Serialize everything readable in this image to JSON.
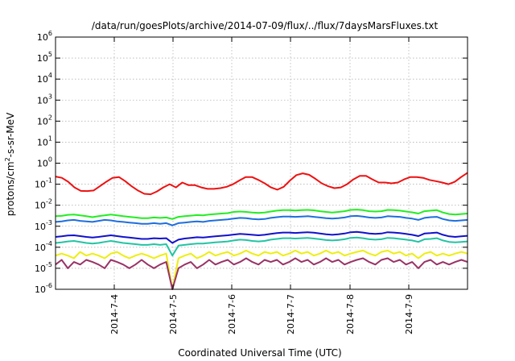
{
  "chart_data": {
    "type": "line",
    "title": "/data/run/goesPlots/archive/2014-07-09/flux/../flux/7daysMarsFluxes.txt",
    "xlabel": "Coordinated Universal Time (UTC)",
    "ylabel": {
      "prefix": "protons/cm",
      "sup": "2",
      "suffix": "-s-sr-MeV"
    },
    "y_scale": "log",
    "ylim_exp": [
      -6,
      6
    ],
    "y_ticks": [
      {
        "base": "10",
        "exp": "-6"
      },
      {
        "base": "10",
        "exp": "-5"
      },
      {
        "base": "10",
        "exp": "-4"
      },
      {
        "base": "10",
        "exp": "-3"
      },
      {
        "base": "10",
        "exp": "-2"
      },
      {
        "base": "10",
        "exp": "-1"
      },
      {
        "base": "10",
        "exp": "0"
      },
      {
        "base": "10",
        "exp": "1"
      },
      {
        "base": "10",
        "exp": "2"
      },
      {
        "base": "10",
        "exp": "3"
      },
      {
        "base": "10",
        "exp": "4"
      },
      {
        "base": "10",
        "exp": "5"
      },
      {
        "base": "10",
        "exp": "6"
      }
    ],
    "x_range_days": [
      "2014-07-03 04:00",
      "2014-07-09 22:00"
    ],
    "x_ticks": [
      "2014-7-4",
      "2014-7-5",
      "2014-7-6",
      "2014-7-7",
      "2014-7-8",
      "2014-7-9"
    ],
    "grid": true,
    "legend": "none",
    "series": [
      {
        "color": "#ee1111",
        "values": [
          0.23,
          0.2,
          0.13,
          0.07,
          0.048,
          0.047,
          0.05,
          0.08,
          0.13,
          0.2,
          0.22,
          0.14,
          0.08,
          0.05,
          0.035,
          0.033,
          0.045,
          0.07,
          0.1,
          0.07,
          0.12,
          0.09,
          0.09,
          0.07,
          0.06,
          0.06,
          0.065,
          0.075,
          0.1,
          0.15,
          0.22,
          0.22,
          0.16,
          0.11,
          0.07,
          0.055,
          0.075,
          0.15,
          0.27,
          0.33,
          0.28,
          0.18,
          0.11,
          0.08,
          0.065,
          0.07,
          0.1,
          0.17,
          0.25,
          0.25,
          0.17,
          0.12,
          0.12,
          0.11,
          0.12,
          0.17,
          0.22,
          0.22,
          0.2,
          0.16,
          0.14,
          0.12,
          0.1,
          0.13,
          0.22,
          0.35
        ]
      },
      {
        "color": "#22ee22",
        "values": [
          0.003,
          0.0031,
          0.0035,
          0.0036,
          0.0033,
          0.003,
          0.0027,
          0.003,
          0.0033,
          0.0036,
          0.0033,
          0.003,
          0.0028,
          0.0026,
          0.0024,
          0.0024,
          0.0026,
          0.0025,
          0.0026,
          0.0022,
          0.0028,
          0.003,
          0.0032,
          0.0034,
          0.0033,
          0.0036,
          0.0038,
          0.004,
          0.0042,
          0.0048,
          0.005,
          0.0048,
          0.0045,
          0.0043,
          0.0045,
          0.005,
          0.0055,
          0.0058,
          0.0058,
          0.0056,
          0.0058,
          0.006,
          0.0057,
          0.0052,
          0.0048,
          0.0045,
          0.0048,
          0.0052,
          0.006,
          0.0062,
          0.0058,
          0.0052,
          0.005,
          0.0052,
          0.006,
          0.0058,
          0.0055,
          0.005,
          0.0046,
          0.004,
          0.0052,
          0.0055,
          0.0058,
          0.0045,
          0.0038,
          0.0036,
          0.0038,
          0.004
        ]
      },
      {
        "color": "#1e6fdd",
        "values": [
          0.0016,
          0.0017,
          0.0019,
          0.002,
          0.0018,
          0.0017,
          0.0016,
          0.0018,
          0.002,
          0.0019,
          0.0017,
          0.0016,
          0.0015,
          0.0014,
          0.0013,
          0.0013,
          0.0014,
          0.0013,
          0.0014,
          0.0011,
          0.0014,
          0.0015,
          0.0016,
          0.0017,
          0.0016,
          0.0018,
          0.0019,
          0.002,
          0.0021,
          0.0023,
          0.0025,
          0.0024,
          0.0022,
          0.0021,
          0.0022,
          0.0025,
          0.0027,
          0.0029,
          0.0029,
          0.0028,
          0.0029,
          0.003,
          0.0028,
          0.0026,
          0.0024,
          0.0023,
          0.0024,
          0.0026,
          0.003,
          0.0031,
          0.0029,
          0.0026,
          0.0025,
          0.0026,
          0.003,
          0.0029,
          0.0028,
          0.0025,
          0.0023,
          0.002,
          0.0025,
          0.0027,
          0.0028,
          0.0022,
          0.0019,
          0.0018,
          0.0019,
          0.002
        ]
      },
      {
        "color": "#1111cc",
        "values": [
          0.00031,
          0.00033,
          0.00036,
          0.00037,
          0.00034,
          0.00031,
          0.00029,
          0.00031,
          0.00034,
          0.00037,
          0.00034,
          0.00031,
          0.00029,
          0.00027,
          0.00025,
          0.00025,
          0.00027,
          0.00026,
          0.00027,
          0.00016,
          0.00023,
          0.00026,
          0.00028,
          0.0003,
          0.00029,
          0.00031,
          0.00033,
          0.00035,
          0.00037,
          0.0004,
          0.00043,
          0.00041,
          0.00039,
          0.00037,
          0.00039,
          0.00043,
          0.00047,
          0.0005,
          0.0005,
          0.00048,
          0.0005,
          0.00052,
          0.00049,
          0.00045,
          0.00041,
          0.00039,
          0.00041,
          0.00045,
          0.00052,
          0.00054,
          0.0005,
          0.00045,
          0.00043,
          0.00045,
          0.00052,
          0.0005,
          0.00047,
          0.00043,
          0.00039,
          0.00034,
          0.00045,
          0.00047,
          0.0005,
          0.00039,
          0.00033,
          0.00031,
          0.00033,
          0.00035
        ]
      },
      {
        "color": "#22c4a4",
        "values": [
          0.00016,
          0.00017,
          0.00019,
          0.0002,
          0.00018,
          0.00016,
          0.00015,
          0.00016,
          0.00018,
          0.0002,
          0.00018,
          0.00016,
          0.00015,
          0.00014,
          0.00013,
          0.00013,
          0.00014,
          0.00013,
          0.00014,
          4e-05,
          0.00012,
          0.00013,
          0.00014,
          0.00015,
          0.00015,
          0.00016,
          0.00017,
          0.00018,
          0.00019,
          0.00021,
          0.00023,
          0.00022,
          0.0002,
          0.00019,
          0.0002,
          0.00023,
          0.00025,
          0.00027,
          0.00027,
          0.00026,
          0.00027,
          0.00028,
          0.00026,
          0.00024,
          0.00022,
          0.00021,
          0.00022,
          0.00024,
          0.00028,
          0.00029,
          0.00027,
          0.00024,
          0.00023,
          0.00024,
          0.00028,
          0.00027,
          0.00025,
          0.00023,
          0.00021,
          0.00018,
          0.00024,
          0.00025,
          0.00027,
          0.00021,
          0.00018,
          0.00017,
          0.00018,
          0.00019
        ]
      },
      {
        "color": "#eeee11",
        "values": [
          4e-05,
          5e-05,
          4e-05,
          3e-05,
          6e-05,
          4e-05,
          5e-05,
          4e-05,
          3e-05,
          5e-05,
          6e-05,
          4e-05,
          3e-05,
          4e-05,
          5e-05,
          4e-05,
          3e-05,
          4e-05,
          5e-05,
          1e-06,
          3e-05,
          4e-05,
          5e-05,
          3e-05,
          4e-05,
          6e-05,
          4e-05,
          5e-05,
          6e-05,
          4e-05,
          5e-05,
          7e-05,
          5e-05,
          4e-05,
          6e-05,
          5e-05,
          6e-05,
          4e-05,
          5e-05,
          7e-05,
          5e-05,
          6e-05,
          4e-05,
          5e-05,
          7e-05,
          5e-05,
          6e-05,
          4e-05,
          5e-05,
          6e-05,
          7e-05,
          5e-05,
          4e-05,
          6e-05,
          7e-05,
          5e-05,
          6e-05,
          4e-05,
          5e-05,
          3e-05,
          5e-05,
          6e-05,
          4e-05,
          5e-05,
          4e-05,
          5e-05,
          6e-05,
          5e-05
        ]
      },
      {
        "color": "#993366",
        "values": [
          1.5e-05,
          2.5e-05,
          1e-05,
          2e-05,
          1.5e-05,
          2.5e-05,
          2e-05,
          1.5e-05,
          1e-05,
          2.5e-05,
          2e-05,
          1.5e-05,
          1e-05,
          1.5e-05,
          2.5e-05,
          1.5e-05,
          1e-05,
          1.5e-05,
          2e-05,
          1e-06,
          1e-05,
          1.5e-05,
          2e-05,
          1e-05,
          1.5e-05,
          2.5e-05,
          1.5e-05,
          2e-05,
          2.5e-05,
          1.5e-05,
          2e-05,
          3e-05,
          2e-05,
          1.5e-05,
          2.5e-05,
          2e-05,
          2.5e-05,
          1.5e-05,
          2e-05,
          3e-05,
          2e-05,
          2.5e-05,
          1.5e-05,
          2e-05,
          3e-05,
          2e-05,
          2.5e-05,
          1.5e-05,
          2e-05,
          2.5e-05,
          3e-05,
          2e-05,
          1.5e-05,
          2.5e-05,
          3e-05,
          2e-05,
          2.5e-05,
          1.5e-05,
          2e-05,
          1e-05,
          2e-05,
          2.5e-05,
          1.5e-05,
          2e-05,
          1.5e-05,
          2e-05,
          2.5e-05,
          2e-05
        ]
      }
    ]
  }
}
